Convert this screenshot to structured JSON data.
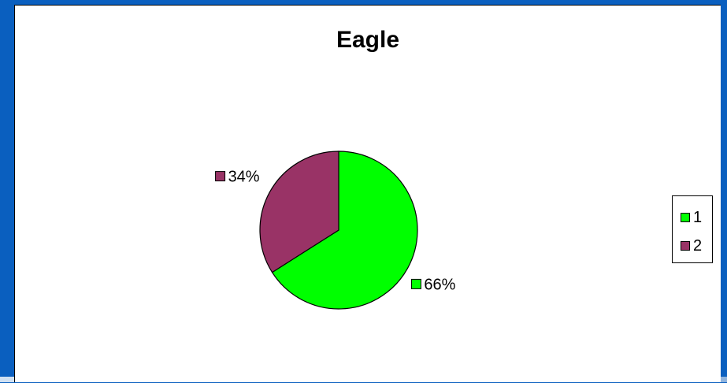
{
  "chart_data": {
    "type": "pie",
    "title": "Eagle",
    "slices": [
      {
        "label": "1",
        "value": 66,
        "data_label": "66%",
        "color": "#00ff00"
      },
      {
        "label": "2",
        "value": 34,
        "data_label": "34%",
        "color": "#993366"
      }
    ],
    "legend": {
      "position": "right",
      "entries": [
        "1",
        "2"
      ]
    }
  },
  "colors": {
    "background": "#0a5fbf",
    "panel": "#ffffff"
  }
}
